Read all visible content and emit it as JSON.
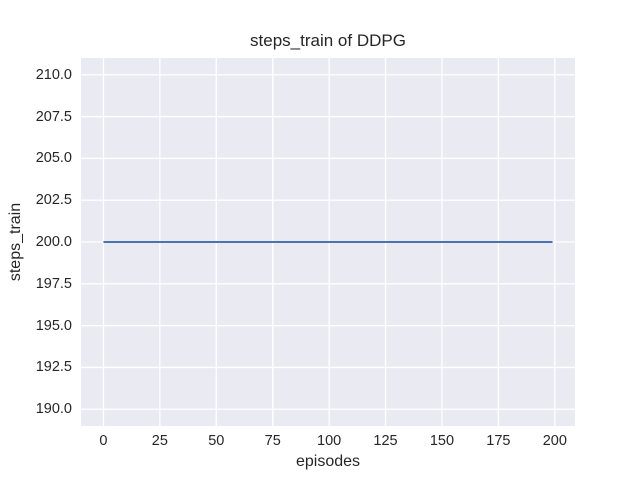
{
  "chart_data": {
    "type": "line",
    "title": "steps_train of DDPG",
    "xlabel": "episodes",
    "ylabel": "steps_train",
    "xlim": [
      -9.95,
      208.95
    ],
    "ylim": [
      189,
      211
    ],
    "x_ticks": [
      0,
      25,
      50,
      75,
      100,
      125,
      150,
      175,
      200
    ],
    "x_tick_labels": [
      "0",
      "25",
      "50",
      "75",
      "100",
      "125",
      "150",
      "175",
      "200"
    ],
    "y_ticks": [
      190,
      192.5,
      195,
      197.5,
      200,
      202.5,
      205,
      207.5,
      210
    ],
    "y_tick_labels": [
      "190.0",
      "192.5",
      "195.0",
      "197.5",
      "200.0",
      "202.5",
      "205.0",
      "207.5",
      "210.0"
    ],
    "grid": true,
    "legend": null,
    "series": [
      {
        "name": "steps_train",
        "color": "#4C72B0",
        "x": [
          0,
          199
        ],
        "y": [
          200,
          200
        ]
      }
    ],
    "colors": {
      "figure_background": "#FFFFFF",
      "plot_background": "#EAEAF2",
      "gridline": "#FFFFFF",
      "text": "#262626",
      "line": "#4C72B0"
    }
  }
}
